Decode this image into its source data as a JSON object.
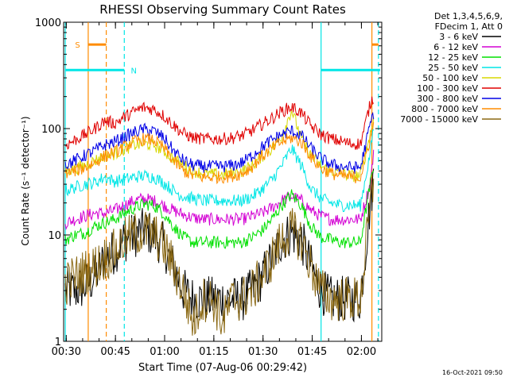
{
  "chart_data": {
    "type": "line",
    "title": "RHESSI Observing Summary Count Rates",
    "xlabel": "Start Time (07-Aug-06 00:29:42)",
    "ylabel": "Count Rate (s⁻¹ detector⁻¹)",
    "yscale": "log",
    "ylim": [
      1,
      1000
    ],
    "xlim_minutes": [
      -0.5,
      96.5
    ],
    "x_ticks": [
      {
        "t": 0.3,
        "label": "00:30"
      },
      {
        "t": 15.3,
        "label": "00:45"
      },
      {
        "t": 30.3,
        "label": "01:00"
      },
      {
        "t": 45.3,
        "label": "01:15"
      },
      {
        "t": 60.3,
        "label": "01:30"
      },
      {
        "t": 75.3,
        "label": "01:45"
      },
      {
        "t": 90.3,
        "label": "02:00"
      }
    ],
    "y_ticks": [
      {
        "v": 1,
        "label": "1"
      },
      {
        "v": 10,
        "label": "10"
      },
      {
        "v": 100,
        "label": "100"
      },
      {
        "v": 1000,
        "label": "1000"
      }
    ],
    "legend_header": [
      "Det 1,3,4,5,6,9,",
      "FDecim 1, Att 0"
    ],
    "legend_position": "outside-right",
    "grid": false,
    "series": [
      {
        "name": "3 - 6 keV",
        "color": "#000000",
        "x": [
          0,
          3,
          6,
          9,
          12,
          15,
          18,
          21,
          24,
          27,
          30,
          33,
          36,
          39,
          42,
          45,
          48,
          51,
          54,
          57,
          60,
          63,
          66,
          69,
          72,
          75,
          78,
          81,
          84,
          87,
          90,
          93,
          94
        ],
        "y": [
          3,
          3,
          3.3,
          4,
          6,
          7,
          9,
          10,
          11,
          10,
          8,
          5,
          3,
          2.5,
          2.5,
          2.5,
          2.5,
          2.5,
          2.5,
          3,
          4,
          6,
          9,
          10.5,
          9,
          5,
          3,
          2.5,
          2.5,
          2.5,
          2.5,
          20,
          35
        ]
      },
      {
        "name": "6 - 12 keV",
        "color": "#d300d3",
        "x": [
          0,
          3,
          6,
          9,
          12,
          15,
          18,
          21,
          24,
          27,
          30,
          33,
          36,
          39,
          42,
          45,
          48,
          51,
          54,
          57,
          60,
          63,
          66,
          69,
          72,
          75,
          78,
          81,
          84,
          87,
          90,
          93,
          94
        ],
        "y": [
          13,
          14,
          15,
          16,
          16,
          17,
          19,
          21,
          22,
          21,
          19,
          17,
          15.5,
          14.5,
          14,
          14,
          14,
          14,
          14,
          15,
          16,
          18,
          21,
          23,
          21,
          17,
          15,
          14,
          14,
          14,
          14,
          30,
          60
        ]
      },
      {
        "name": "12 - 25 keV",
        "color": "#00e000",
        "x": [
          0,
          3,
          6,
          9,
          12,
          15,
          18,
          21,
          24,
          27,
          30,
          33,
          36,
          39,
          42,
          45,
          48,
          51,
          54,
          57,
          60,
          63,
          66,
          69,
          72,
          75,
          78,
          81,
          84,
          87,
          90,
          93,
          94
        ],
        "y": [
          9,
          10,
          10.5,
          12,
          13,
          14,
          16,
          18,
          19.5,
          19,
          16,
          12,
          9.5,
          8.5,
          8.5,
          8.5,
          8.5,
          8.5,
          8.5,
          9.5,
          11,
          14,
          19,
          24,
          19,
          12,
          9.5,
          9,
          8.5,
          8.5,
          8.5,
          30,
          45
        ]
      },
      {
        "name": "25 - 50 keV",
        "color": "#00e6e6",
        "x": [
          0,
          3,
          6,
          9,
          12,
          15,
          18,
          21,
          24,
          27,
          30,
          33,
          36,
          39,
          42,
          45,
          48,
          51,
          54,
          57,
          60,
          63,
          66,
          69,
          72,
          75,
          78,
          81,
          84,
          87,
          90,
          93,
          94
        ],
        "y": [
          26,
          28,
          30,
          31,
          35,
          32,
          33,
          35,
          36,
          35,
          31,
          26,
          23,
          22,
          21,
          21,
          21,
          21,
          21,
          23,
          27,
          33,
          45,
          65,
          45,
          27,
          22,
          20,
          19,
          19,
          19,
          60,
          100
        ]
      },
      {
        "name": "50 - 100 keV",
        "color": "#d8d800",
        "x": [
          0,
          3,
          6,
          9,
          12,
          15,
          18,
          21,
          24,
          27,
          30,
          33,
          36,
          39,
          42,
          45,
          48,
          51,
          54,
          57,
          60,
          63,
          66,
          69,
          72,
          75,
          78,
          81,
          84,
          87,
          90,
          93,
          94
        ],
        "y": [
          40,
          42,
          45,
          50,
          55,
          58,
          64,
          70,
          72,
          70,
          62,
          52,
          45,
          40,
          38,
          37,
          37,
          38,
          40,
          45,
          55,
          65,
          85,
          150,
          80,
          55,
          44,
          40,
          38,
          36,
          36,
          90,
          120
        ]
      },
      {
        "name": "100 - 300 keV",
        "color": "#e00000",
        "x": [
          0,
          3,
          6,
          9,
          12,
          15,
          18,
          21,
          24,
          27,
          30,
          33,
          36,
          39,
          42,
          45,
          48,
          51,
          54,
          57,
          60,
          63,
          66,
          69,
          72,
          75,
          78,
          81,
          84,
          87,
          90,
          93,
          94
        ],
        "y": [
          70,
          78,
          88,
          100,
          118,
          112,
          128,
          145,
          158,
          152,
          132,
          108,
          90,
          82,
          80,
          80,
          80,
          82,
          86,
          96,
          110,
          125,
          145,
          160,
          140,
          105,
          88,
          80,
          76,
          72,
          72,
          170,
          200
        ]
      },
      {
        "name": "300 - 800 keV",
        "color": "#0000e6",
        "x": [
          0,
          3,
          6,
          9,
          12,
          15,
          18,
          21,
          24,
          27,
          30,
          33,
          36,
          39,
          42,
          45,
          48,
          51,
          54,
          57,
          60,
          63,
          66,
          69,
          72,
          75,
          78,
          81,
          84,
          87,
          90,
          93,
          94
        ],
        "y": [
          46,
          50,
          56,
          62,
          70,
          75,
          83,
          92,
          98,
          95,
          82,
          62,
          50,
          45,
          44,
          44,
          44,
          45,
          48,
          56,
          67,
          78,
          88,
          95,
          86,
          65,
          52,
          46,
          44,
          43,
          43,
          110,
          140
        ]
      },
      {
        "name": "800 - 7000 keV",
        "color": "#ff8c00",
        "x": [
          0,
          3,
          6,
          9,
          12,
          15,
          18,
          21,
          24,
          27,
          30,
          33,
          36,
          39,
          42,
          45,
          48,
          51,
          54,
          57,
          60,
          63,
          66,
          69,
          72,
          75,
          78,
          81,
          84,
          87,
          90,
          93,
          94
        ],
        "y": [
          38,
          40,
          43,
          48,
          55,
          60,
          67,
          75,
          80,
          78,
          66,
          50,
          40,
          36,
          35,
          35,
          35,
          36,
          38,
          44,
          55,
          65,
          75,
          82,
          74,
          54,
          42,
          38,
          36,
          35,
          35,
          80,
          110
        ]
      },
      {
        "name": "7000 - 15000 keV",
        "color": "#8b6914",
        "x": [
          0,
          3,
          6,
          9,
          12,
          15,
          18,
          21,
          24,
          27,
          30,
          33,
          36,
          39,
          42,
          45,
          48,
          51,
          54,
          57,
          60,
          63,
          66,
          69,
          72,
          75,
          78,
          81,
          84,
          87,
          90,
          93,
          94
        ],
        "y": [
          3.5,
          4,
          4.5,
          5,
          6,
          7,
          9,
          10,
          11,
          10,
          8,
          5,
          3,
          1.5,
          2.5,
          2.5,
          1.5,
          2.5,
          2.5,
          3,
          4,
          6,
          9,
          11,
          9,
          5,
          3,
          2.5,
          2.5,
          2.5,
          2.5,
          18,
          30
        ]
      }
    ],
    "vertical_markers": [
      {
        "t": 0,
        "color": "#00e6e6",
        "style": "solid"
      },
      {
        "t": 7,
        "color": "#ff8c00",
        "style": "solid"
      },
      {
        "t": 12.5,
        "color": "#ff8c00",
        "style": "dashed"
      },
      {
        "t": 18,
        "color": "#00e6e6",
        "style": "dashed"
      },
      {
        "t": 78,
        "color": "#00e6e6",
        "style": "solid"
      },
      {
        "t": 93.5,
        "color": "#ff8c00",
        "style": "solid"
      },
      {
        "t": 95.5,
        "color": "#00e6e6",
        "style": "dashed"
      }
    ],
    "top_bars": [
      {
        "t0": 0,
        "t1": 18,
        "color": "#00e6e6",
        "level": 0.85,
        "label": "N",
        "label_t": 20
      },
      {
        "t0": 78,
        "t1": 96,
        "color": "#00e6e6",
        "level": 0.85
      },
      {
        "t0": 7,
        "t1": 12.5,
        "color": "#ff8c00",
        "level": 0.93,
        "label": "S",
        "label_t": 3
      },
      {
        "t0": 93.5,
        "t1": 95.5,
        "color": "#ff8c00",
        "level": 0.93
      }
    ]
  },
  "footer": {
    "timestamp": "16-Oct-2021 09:50"
  }
}
